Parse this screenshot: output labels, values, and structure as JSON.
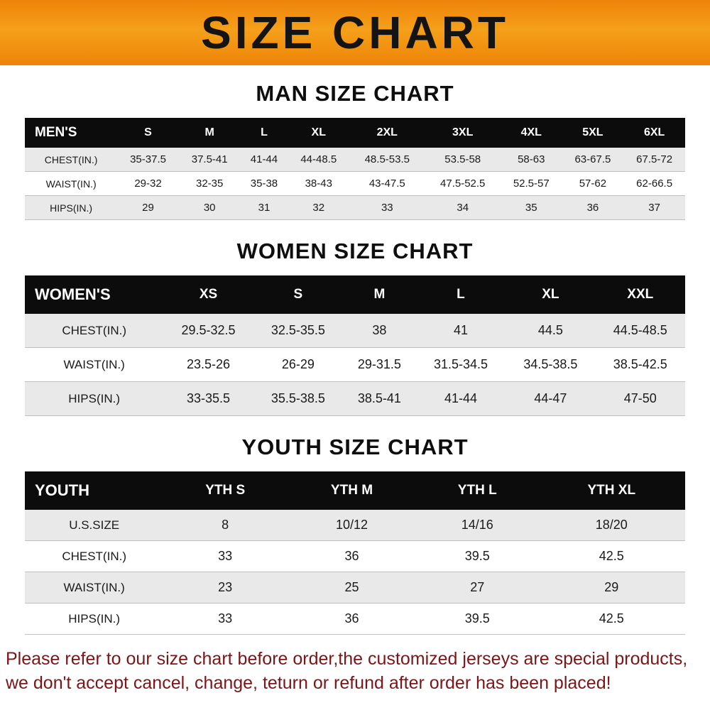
{
  "banner": {
    "title": "SIZE CHART",
    "bg_color_top": "#ee8309",
    "bg_color_mid": "#f5a01a"
  },
  "footer": {
    "line1": "Please refer to our size chart before order,the customized jerseys are special products,",
    "line2": "we don't accept cancel, change, teturn or refund after order has been placed!",
    "text_color": "#7d1517"
  },
  "colors": {
    "header_row_bg": "#0c0c0c",
    "header_row_text": "#ffffff",
    "stripe_odd": "#e9e9e9",
    "stripe_even": "#ffffff"
  },
  "chart_data": [
    {
      "type": "table",
      "id": "mens",
      "title": "MAN SIZE CHART",
      "columns": [
        "MEN'S",
        "S",
        "M",
        "L",
        "XL",
        "2XL",
        "3XL",
        "4XL",
        "5XL",
        "6XL"
      ],
      "rows": [
        [
          "CHEST(IN.)",
          "35-37.5",
          "37.5-41",
          "41-44",
          "44-48.5",
          "48.5-53.5",
          "53.5-58",
          "58-63",
          "63-67.5",
          "67.5-72"
        ],
        [
          "WAIST(IN.)",
          "29-32",
          "32-35",
          "35-38",
          "38-43",
          "43-47.5",
          "47.5-52.5",
          "52.5-57",
          "57-62",
          "62-66.5"
        ],
        [
          "HIPS(IN.)",
          "29",
          "30",
          "31",
          "32",
          "33",
          "34",
          "35",
          "36",
          "37"
        ]
      ]
    },
    {
      "type": "table",
      "id": "womens",
      "title": "WOMEN SIZE CHART",
      "columns": [
        "WOMEN'S",
        "XS",
        "S",
        "M",
        "L",
        "XL",
        "XXL"
      ],
      "rows": [
        [
          "CHEST(IN.)",
          "29.5-32.5",
          "32.5-35.5",
          "38",
          "41",
          "44.5",
          "44.5-48.5"
        ],
        [
          "WAIST(IN.)",
          "23.5-26",
          "26-29",
          "29-31.5",
          "31.5-34.5",
          "34.5-38.5",
          "38.5-42.5"
        ],
        [
          "HIPS(IN.)",
          "33-35.5",
          "35.5-38.5",
          "38.5-41",
          "41-44",
          "44-47",
          "47-50"
        ]
      ]
    },
    {
      "type": "table",
      "id": "youth",
      "title": "YOUTH SIZE CHART",
      "columns": [
        "YOUTH",
        "YTH S",
        "YTH M",
        "YTH L",
        "YTH XL"
      ],
      "rows": [
        [
          "U.S.SIZE",
          "8",
          "10/12",
          "14/16",
          "18/20"
        ],
        [
          "CHEST(IN.)",
          "33",
          "36",
          "39.5",
          "42.5"
        ],
        [
          "WAIST(IN.)",
          "23",
          "25",
          "27",
          "29"
        ],
        [
          "HIPS(IN.)",
          "33",
          "36",
          "39.5",
          "42.5"
        ]
      ]
    }
  ]
}
